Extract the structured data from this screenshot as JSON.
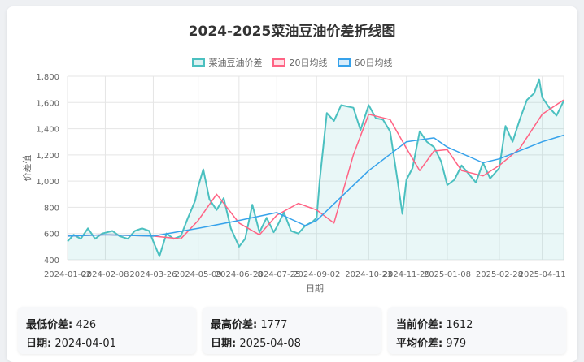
{
  "chart_data": {
    "type": "line",
    "title": "2024-2025菜油豆油价差折线图",
    "xlabel": "日期",
    "ylabel": "价差值",
    "ylim": [
      400,
      1800
    ],
    "yticks": [
      "1,800",
      "1,600",
      "1,400",
      "1,200",
      "1,000",
      "800",
      "600",
      "400"
    ],
    "xticks": [
      "2024-01-02",
      "2024-02-08",
      "2024-03-26",
      "2024-05-09",
      "2024-06-18",
      "2024-07-25",
      "2024-09-02",
      "2024-10-23",
      "2024-11-29",
      "2025-01-08",
      "2025-02-28",
      "2025-04-11"
    ],
    "grid": true,
    "legend": "top",
    "series": [
      {
        "name": "菜油豆油价差",
        "color": "#4bc0c0",
        "x": [
          "2024-01-02",
          "2024-01-08",
          "2024-01-15",
          "2024-01-22",
          "2024-01-29",
          "2024-02-05",
          "2024-02-15",
          "2024-02-22",
          "2024-03-01",
          "2024-03-08",
          "2024-03-15",
          "2024-03-22",
          "2024-03-26",
          "2024-04-01",
          "2024-04-08",
          "2024-04-15",
          "2024-04-22",
          "2024-04-29",
          "2024-05-06",
          "2024-05-09",
          "2024-05-14",
          "2024-05-20",
          "2024-05-27",
          "2024-06-03",
          "2024-06-10",
          "2024-06-18",
          "2024-06-24",
          "2024-07-01",
          "2024-07-08",
          "2024-07-15",
          "2024-07-22",
          "2024-07-25",
          "2024-08-01",
          "2024-08-08",
          "2024-08-15",
          "2024-08-22",
          "2024-08-29",
          "2024-09-02",
          "2024-09-05",
          "2024-09-12",
          "2024-09-19",
          "2024-09-26",
          "2024-10-08",
          "2024-10-15",
          "2024-10-23",
          "2024-10-30",
          "2024-11-06",
          "2024-11-13",
          "2024-11-20",
          "2024-11-25",
          "2024-11-29",
          "2024-12-05",
          "2024-12-12",
          "2024-12-19",
          "2024-12-26",
          "2025-01-02",
          "2025-01-08",
          "2025-01-15",
          "2025-01-22",
          "2025-02-05",
          "2025-02-12",
          "2025-02-19",
          "2025-02-28",
          "2025-03-06",
          "2025-03-13",
          "2025-03-20",
          "2025-03-27",
          "2025-04-03",
          "2025-04-08",
          "2025-04-11",
          "2025-04-18",
          "2025-04-25",
          "2025-05-02"
        ],
        "values": [
          540,
          590,
          560,
          640,
          560,
          600,
          620,
          580,
          560,
          620,
          640,
          620,
          540,
          426,
          600,
          560,
          580,
          720,
          850,
          960,
          1090,
          860,
          780,
          870,
          640,
          500,
          560,
          820,
          610,
          720,
          610,
          650,
          760,
          620,
          600,
          660,
          690,
          720,
          1000,
          1520,
          1460,
          1580,
          1560,
          1390,
          1580,
          1480,
          1470,
          1380,
          1020,
          750,
          1010,
          1100,
          1380,
          1300,
          1260,
          1150,
          970,
          1010,
          1120,
          990,
          1140,
          1020,
          1100,
          1420,
          1300,
          1470,
          1620,
          1670,
          1777,
          1640,
          1560,
          1500,
          1612
        ]
      },
      {
        "name": "20日均线",
        "color": "#ff6384",
        "x": [
          "2024-01-02",
          "2024-02-08",
          "2024-03-26",
          "2024-04-22",
          "2024-05-09",
          "2024-05-27",
          "2024-06-18",
          "2024-07-08",
          "2024-07-25",
          "2024-08-15",
          "2024-09-02",
          "2024-09-19",
          "2024-10-08",
          "2024-10-23",
          "2024-11-13",
          "2024-11-29",
          "2024-12-12",
          "2024-12-26",
          "2025-01-08",
          "2025-01-22",
          "2025-02-12",
          "2025-02-28",
          "2025-03-20",
          "2025-04-11",
          "2025-05-02"
        ],
        "values": [
          580,
          590,
          580,
          560,
          700,
          900,
          680,
          590,
          740,
          830,
          780,
          680,
          1200,
          1510,
          1470,
          1250,
          1080,
          1230,
          1240,
          1080,
          1040,
          1120,
          1250,
          1510,
          1620
        ]
      },
      {
        "name": "60日均线",
        "color": "#36a2eb",
        "x": [
          "2024-01-02",
          "2024-02-08",
          "2024-03-26",
          "2024-05-09",
          "2024-06-18",
          "2024-07-25",
          "2024-08-22",
          "2024-09-02",
          "2024-10-23",
          "2024-11-29",
          "2024-12-26",
          "2025-01-08",
          "2025-02-12",
          "2025-02-28",
          "2025-04-11",
          "2025-05-02"
        ],
        "values": [
          580,
          590,
          580,
          640,
          700,
          760,
          660,
          700,
          1080,
          1300,
          1330,
          1260,
          1140,
          1170,
          1300,
          1350
        ]
      }
    ]
  },
  "stats": {
    "min_label": "最低价差:",
    "min_value": "426",
    "min_date_label": "日期:",
    "min_date": "2024-04-01",
    "max_label": "最高价差:",
    "max_value": "1777",
    "max_date_label": "日期:",
    "max_date": "2025-04-08",
    "cur_label": "当前价差:",
    "cur_value": "1612",
    "avg_label": "平均价差:",
    "avg_value": "979"
  }
}
